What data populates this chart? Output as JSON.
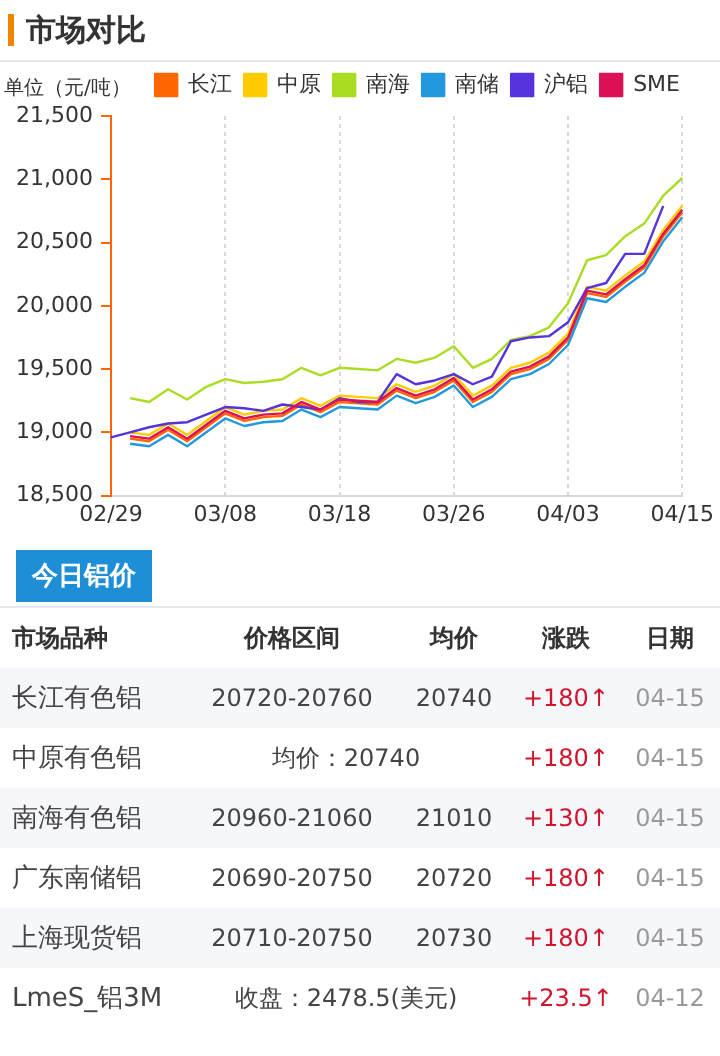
{
  "chart_data": [
    {
      "type": "line",
      "title": "市场对比",
      "ylabel": "单位（元/吨）",
      "categories": [
        "02/29",
        null,
        null,
        null,
        null,
        null,
        "03/08",
        null,
        null,
        null,
        null,
        null,
        "03/18",
        null,
        null,
        null,
        null,
        null,
        "03/26",
        null,
        null,
        null,
        null,
        null,
        "04/03",
        null,
        null,
        null,
        null,
        null,
        "04/15"
      ],
      "series": [
        {
          "name": "长江",
          "color": "#ff6600",
          "values": [
            null,
            18950,
            18930,
            19020,
            18930,
            19040,
            19150,
            19090,
            19120,
            19130,
            19220,
            19160,
            19240,
            19230,
            19220,
            19330,
            19270,
            19320,
            19410,
            19240,
            19320,
            19460,
            19500,
            19580,
            19730,
            20100,
            20070,
            20190,
            20300,
            20550,
            20740
          ]
        },
        {
          "name": "中原",
          "color": "#ffcc00",
          "values": [
            null,
            19000,
            18980,
            19070,
            18980,
            19090,
            19200,
            19140,
            19170,
            19180,
            19270,
            19210,
            19290,
            19280,
            19270,
            19380,
            19320,
            19370,
            19460,
            19290,
            19370,
            19510,
            19550,
            19630,
            19780,
            20150,
            20120,
            20240,
            20350,
            20600,
            20790
          ]
        },
        {
          "name": "南海",
          "color": "#aadd22",
          "values": [
            null,
            19270,
            19240,
            19340,
            19260,
            19360,
            19420,
            19390,
            19400,
            19420,
            19510,
            19450,
            19510,
            19500,
            19490,
            19580,
            19550,
            19590,
            19680,
            19510,
            19580,
            19730,
            19760,
            19830,
            20020,
            20360,
            20400,
            20550,
            20650,
            20870,
            21010
          ]
        },
        {
          "name": "南储",
          "color": "#2299dd",
          "values": [
            null,
            18910,
            18890,
            18980,
            18890,
            19000,
            19110,
            19050,
            19080,
            19090,
            19180,
            19120,
            19200,
            19190,
            19180,
            19290,
            19230,
            19280,
            19370,
            19200,
            19280,
            19420,
            19460,
            19540,
            19690,
            20060,
            20030,
            20150,
            20260,
            20510,
            20700
          ]
        },
        {
          "name": "沪铝",
          "color": "#5533dd",
          "values": [
            18960,
            19000,
            19040,
            19070,
            19080,
            19140,
            19200,
            19190,
            19170,
            19220,
            19200,
            19180,
            19270,
            19240,
            19240,
            19460,
            19380,
            19410,
            19460,
            19380,
            19440,
            19720,
            19750,
            19760,
            19870,
            20140,
            20180,
            20410,
            20410,
            20790,
            null
          ]
        },
        {
          "name": "SME",
          "color": "#dd1155",
          "values": [
            null,
            18970,
            18950,
            19040,
            18950,
            19060,
            19170,
            19110,
            19140,
            19150,
            19240,
            19180,
            19260,
            19250,
            19240,
            19350,
            19290,
            19340,
            19430,
            19260,
            19340,
            19480,
            19520,
            19600,
            19750,
            20120,
            20090,
            20210,
            20320,
            20570,
            20760
          ]
        }
      ],
      "ylim": [
        18500,
        21500
      ],
      "yticks": [
        {
          "value": 18500,
          "label": "18,500"
        },
        {
          "value": 19000,
          "label": "19,000"
        },
        {
          "value": 19500,
          "label": "19,500"
        },
        {
          "value": 20000,
          "label": "20,000"
        },
        {
          "value": 20500,
          "label": "20,500"
        },
        {
          "value": 21000,
          "label": "21,000"
        },
        {
          "value": 21500,
          "label": "21,500"
        }
      ],
      "grid": "x",
      "legend": "top",
      "marker": "none",
      "line_style": "solid"
    },
    {
      "type": "other",
      "title": "今日铝价",
      "categories": [
        "市场品种",
        "价格区间",
        "均价",
        "涨跌",
        "日期"
      ],
      "y_categories": [
        "长江有色铝",
        "中原有色铝",
        "南海有色铝",
        "广东南储铝",
        "上海现货铝",
        "LmeS_铝3M"
      ],
      "cell_labels": [
        [
          "20720-20760",
          "20740",
          "+180↑",
          "04-15"
        ],
        [
          "均价：20740",
          null,
          "+180↑",
          "04-15"
        ],
        [
          "20960-21060",
          "21010",
          "+130↑",
          "04-15"
        ],
        [
          "20690-20750",
          "20720",
          "+180↑",
          "04-15"
        ],
        [
          "20710-20750",
          "20730",
          "+180↑",
          "04-15"
        ],
        [
          "收盘：2478.5(美元)",
          null,
          "+23.5↑",
          "04-12"
        ]
      ]
    }
  ]
}
